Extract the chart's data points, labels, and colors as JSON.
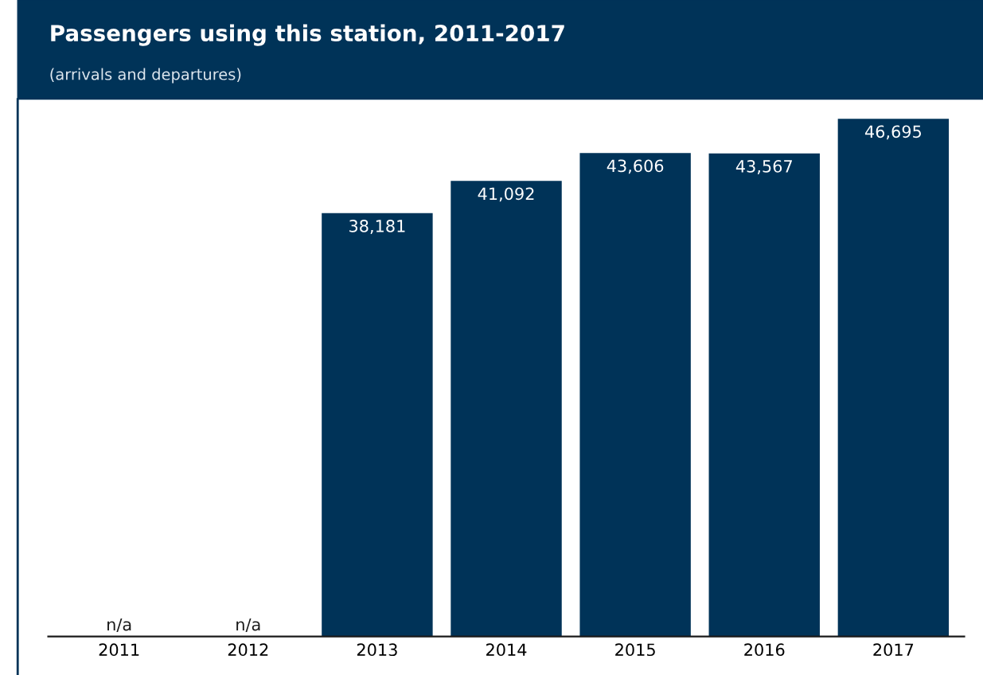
{
  "chart_data": {
    "type": "bar",
    "title": "Passengers using this station, 2011-2017",
    "subtitle": "(arrivals and departures)",
    "categories": [
      "2011",
      "2012",
      "2013",
      "2014",
      "2015",
      "2016",
      "2017"
    ],
    "values": [
      null,
      null,
      38181,
      41092,
      43606,
      43567,
      46695
    ],
    "value_labels": [
      "n/a",
      "n/a",
      "38,181",
      "41,092",
      "43,606",
      "43,567",
      "46,695"
    ],
    "color": "#003358",
    "grid": false,
    "legend": false
  }
}
